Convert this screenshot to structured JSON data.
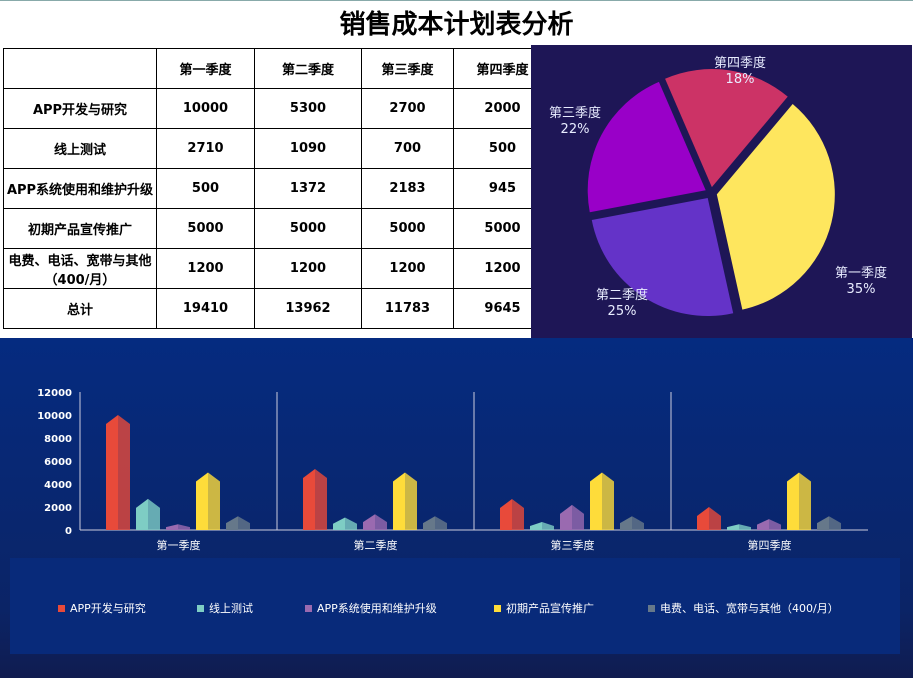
{
  "title": "销售成本计划表分析",
  "table": {
    "headers": [
      "",
      "第一季度",
      "第二季度",
      "第三季度",
      "第四季度"
    ],
    "rows": [
      [
        "APP开发与研究",
        "10000",
        "5300",
        "2700",
        "2000"
      ],
      [
        "线上测试",
        "2710",
        "1090",
        "700",
        "500"
      ],
      [
        "APP系统使用和维护升级",
        "500",
        "1372",
        "2183",
        "945"
      ],
      [
        "初期产品宣传推广",
        "5000",
        "5000",
        "5000",
        "5000"
      ],
      [
        "电费、电话、宽带与其他（400/月）",
        "1200",
        "1200",
        "1200",
        "1200"
      ],
      [
        "总计",
        "19410",
        "13962",
        "11783",
        "9645"
      ]
    ]
  },
  "chart_data": [
    {
      "type": "pie",
      "categories": [
        "第一季度",
        "第二季度",
        "第三季度",
        "第四季度"
      ],
      "values": [
        19410,
        13962,
        11783,
        9645
      ],
      "labels": [
        "35%",
        "25%",
        "22%",
        "18%"
      ],
      "colors": [
        "#fee65e",
        "#6433c8",
        "#9900c8",
        "#cc3366"
      ]
    },
    {
      "type": "bar",
      "categories": [
        "第一季度",
        "第二季度",
        "第三季度",
        "第四季度"
      ],
      "ylim": [
        0,
        12000
      ],
      "yticks": [
        "0",
        "2000",
        "4000",
        "6000",
        "8000",
        "10000",
        "12000"
      ],
      "series": [
        {
          "name": "APP开发与研究",
          "values": [
            10000,
            5300,
            2700,
            2000
          ],
          "color": "#e84a3a"
        },
        {
          "name": "线上测试",
          "values": [
            2710,
            1090,
            700,
            500
          ],
          "color": "#7ecdc4"
        },
        {
          "name": "APP系统使用和维护升级",
          "values": [
            500,
            1372,
            2183,
            945
          ],
          "color": "#9a6ab0"
        },
        {
          "name": "初期产品宣传推广",
          "values": [
            5000,
            5000,
            5000,
            5000
          ],
          "color": "#fedc3a"
        },
        {
          "name": "电费、电话、宽带与其他（400/月）",
          "values": [
            1200,
            1200,
            1200,
            1200
          ],
          "color": "#66788a"
        }
      ]
    }
  ]
}
